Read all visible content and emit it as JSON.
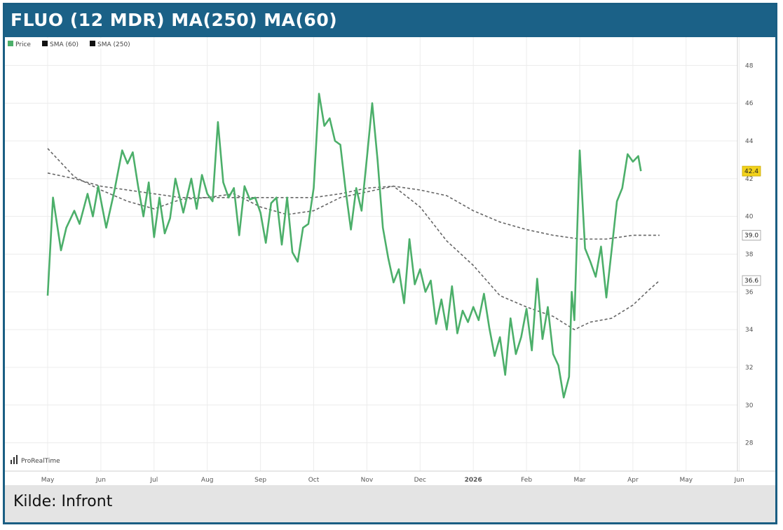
{
  "header": {
    "title": "FLUO (12 MDR) MA(250) MA(60)"
  },
  "footer": {
    "source": "Kilde: Infront"
  },
  "watermark": "ProRealTime",
  "colors": {
    "price": "#4caf6a",
    "sma": "#666666",
    "header": "#1b6187",
    "badge": "#f2d21b"
  },
  "chart_data": {
    "type": "line",
    "title": "FLUO (12 MDR) MA(250) MA(60)",
    "xlabel": "",
    "ylabel": "",
    "x_ticks": [
      "May",
      "Jun",
      "Jul",
      "Aug",
      "Sep",
      "Oct",
      "Nov",
      "Dec",
      "2026",
      "Feb",
      "Mar",
      "Apr",
      "May",
      "Jun"
    ],
    "y_ticks": [
      28,
      30,
      32,
      34,
      36,
      38,
      40,
      42,
      44,
      46,
      48
    ],
    "ylim": [
      26.5,
      49.5
    ],
    "grid": true,
    "legend": {
      "placement": "top-left",
      "entries": [
        "Price",
        "SMA (60)",
        "SMA (250)"
      ]
    },
    "last_values": {
      "price": "42.4",
      "sma60": "36.6",
      "sma250": "39.0"
    },
    "series": [
      {
        "name": "Price",
        "points": [
          [
            0.0,
            35.8
          ],
          [
            0.1,
            41.0
          ],
          [
            0.25,
            38.2
          ],
          [
            0.35,
            39.4
          ],
          [
            0.5,
            40.3
          ],
          [
            0.6,
            39.6
          ],
          [
            0.75,
            41.2
          ],
          [
            0.85,
            40.0
          ],
          [
            0.95,
            41.6
          ],
          [
            1.1,
            39.4
          ],
          [
            1.25,
            41.3
          ],
          [
            1.4,
            43.5
          ],
          [
            1.5,
            42.8
          ],
          [
            1.6,
            43.4
          ],
          [
            1.7,
            41.6
          ],
          [
            1.8,
            40.0
          ],
          [
            1.9,
            41.8
          ],
          [
            2.0,
            38.9
          ],
          [
            2.1,
            41.0
          ],
          [
            2.2,
            39.1
          ],
          [
            2.3,
            39.9
          ],
          [
            2.4,
            42.0
          ],
          [
            2.55,
            40.2
          ],
          [
            2.7,
            42.0
          ],
          [
            2.8,
            40.4
          ],
          [
            2.9,
            42.2
          ],
          [
            3.0,
            41.2
          ],
          [
            3.1,
            40.8
          ],
          [
            3.2,
            45.0
          ],
          [
            3.3,
            41.8
          ],
          [
            3.4,
            41.0
          ],
          [
            3.5,
            41.5
          ],
          [
            3.6,
            39.0
          ],
          [
            3.7,
            41.6
          ],
          [
            3.8,
            40.9
          ],
          [
            3.9,
            41.0
          ],
          [
            4.0,
            40.2
          ],
          [
            4.1,
            38.6
          ],
          [
            4.2,
            40.7
          ],
          [
            4.3,
            41.0
          ],
          [
            4.4,
            38.5
          ],
          [
            4.5,
            41.0
          ],
          [
            4.6,
            38.1
          ],
          [
            4.7,
            37.6
          ],
          [
            4.8,
            39.4
          ],
          [
            4.9,
            39.6
          ],
          [
            5.0,
            41.5
          ],
          [
            5.1,
            46.5
          ],
          [
            5.2,
            44.8
          ],
          [
            5.3,
            45.2
          ],
          [
            5.4,
            44.0
          ],
          [
            5.5,
            43.8
          ],
          [
            5.6,
            41.4
          ],
          [
            5.7,
            39.3
          ],
          [
            5.8,
            41.5
          ],
          [
            5.9,
            40.3
          ],
          [
            6.0,
            43.1
          ],
          [
            6.1,
            46.0
          ],
          [
            6.2,
            43.0
          ],
          [
            6.3,
            39.4
          ],
          [
            6.4,
            37.8
          ],
          [
            6.5,
            36.5
          ],
          [
            6.6,
            37.2
          ],
          [
            6.7,
            35.4
          ],
          [
            6.8,
            38.8
          ],
          [
            6.9,
            36.4
          ],
          [
            7.0,
            37.2
          ],
          [
            7.1,
            36.0
          ],
          [
            7.2,
            36.6
          ],
          [
            7.3,
            34.3
          ],
          [
            7.4,
            35.6
          ],
          [
            7.5,
            34.0
          ],
          [
            7.6,
            36.3
          ],
          [
            7.7,
            33.8
          ],
          [
            7.8,
            35.0
          ],
          [
            7.9,
            34.4
          ],
          [
            8.0,
            35.2
          ],
          [
            8.1,
            34.5
          ],
          [
            8.2,
            35.9
          ],
          [
            8.3,
            34.1
          ],
          [
            8.4,
            32.6
          ],
          [
            8.5,
            33.6
          ],
          [
            8.6,
            31.6
          ],
          [
            8.7,
            34.6
          ],
          [
            8.8,
            32.7
          ],
          [
            8.9,
            33.6
          ],
          [
            9.0,
            35.1
          ],
          [
            9.1,
            32.9
          ],
          [
            9.2,
            36.7
          ],
          [
            9.3,
            33.5
          ],
          [
            9.4,
            35.2
          ],
          [
            9.5,
            32.7
          ],
          [
            9.6,
            32.1
          ],
          [
            9.7,
            30.4
          ],
          [
            9.8,
            31.5
          ],
          [
            9.85,
            36.0
          ],
          [
            9.9,
            34.5
          ],
          [
            10.0,
            43.5
          ],
          [
            10.1,
            38.3
          ],
          [
            10.2,
            37.6
          ],
          [
            10.3,
            36.8
          ],
          [
            10.4,
            38.4
          ],
          [
            10.5,
            35.7
          ],
          [
            10.6,
            38.2
          ],
          [
            10.7,
            40.8
          ],
          [
            10.8,
            41.5
          ],
          [
            10.9,
            43.3
          ],
          [
            11.0,
            42.9
          ],
          [
            11.1,
            43.2
          ],
          [
            11.15,
            42.4
          ]
        ]
      },
      {
        "name": "SMA (60)",
        "points": [
          [
            0.0,
            43.6
          ],
          [
            0.5,
            42.1
          ],
          [
            1.0,
            41.4
          ],
          [
            1.5,
            40.8
          ],
          [
            2.0,
            40.4
          ],
          [
            2.5,
            40.9
          ],
          [
            3.0,
            41.0
          ],
          [
            3.5,
            41.2
          ],
          [
            4.0,
            40.5
          ],
          [
            4.5,
            40.1
          ],
          [
            5.0,
            40.3
          ],
          [
            5.5,
            41.0
          ],
          [
            6.0,
            41.3
          ],
          [
            6.5,
            41.6
          ],
          [
            7.0,
            40.5
          ],
          [
            7.5,
            38.7
          ],
          [
            8.0,
            37.4
          ],
          [
            8.5,
            35.8
          ],
          [
            9.0,
            35.2
          ],
          [
            9.5,
            34.7
          ],
          [
            9.9,
            34.0
          ],
          [
            10.2,
            34.4
          ],
          [
            10.6,
            34.6
          ],
          [
            11.0,
            35.3
          ],
          [
            11.3,
            36.1
          ],
          [
            11.5,
            36.6
          ]
        ]
      },
      {
        "name": "SMA (250)",
        "points": [
          [
            0.0,
            42.3
          ],
          [
            0.5,
            42.0
          ],
          [
            1.0,
            41.6
          ],
          [
            1.5,
            41.4
          ],
          [
            2.0,
            41.2
          ],
          [
            2.5,
            41.0
          ],
          [
            3.0,
            41.0
          ],
          [
            3.5,
            41.0
          ],
          [
            4.0,
            41.0
          ],
          [
            4.5,
            41.0
          ],
          [
            5.0,
            41.0
          ],
          [
            5.5,
            41.2
          ],
          [
            6.0,
            41.5
          ],
          [
            6.5,
            41.6
          ],
          [
            7.0,
            41.4
          ],
          [
            7.5,
            41.1
          ],
          [
            8.0,
            40.3
          ],
          [
            8.5,
            39.7
          ],
          [
            9.0,
            39.3
          ],
          [
            9.5,
            39.0
          ],
          [
            10.0,
            38.8
          ],
          [
            10.5,
            38.8
          ],
          [
            11.0,
            39.0
          ],
          [
            11.5,
            39.0
          ]
        ]
      }
    ]
  }
}
